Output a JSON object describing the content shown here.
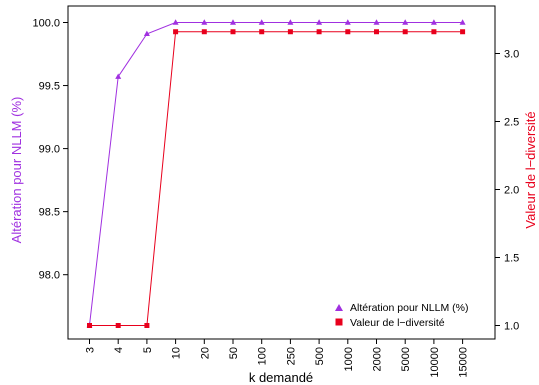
{
  "chart_data": {
    "type": "line",
    "xlabel": "k demandé",
    "categories": [
      "3",
      "4",
      "5",
      "10",
      "20",
      "50",
      "100",
      "250",
      "500",
      "1000",
      "2000",
      "5000",
      "10000",
      "15000"
    ],
    "y_left": {
      "label": "Altération pour NLLM (%)",
      "color": "#a030e0",
      "ticks": [
        "98.0",
        "98.5",
        "99.0",
        "99.5",
        "100.0"
      ],
      "ylim": [
        97.6,
        100.0
      ]
    },
    "y_right": {
      "label": "Valeur de l−diversité",
      "color": "#e8001c",
      "ticks": [
        "1.0",
        "1.5",
        "2.0",
        "2.5",
        "3.0"
      ],
      "ylim": [
        1.0,
        3.16
      ]
    },
    "series": [
      {
        "name": "Altération pour NLLM (%)",
        "axis": "left",
        "color": "#a030e0",
        "marker": "triangle",
        "values": [
          97.6,
          99.57,
          99.91,
          100.0,
          100.0,
          100.0,
          100.0,
          100.0,
          100.0,
          100.0,
          100.0,
          100.0,
          100.0,
          100.0
        ]
      },
      {
        "name": "Valeur de l−diversité",
        "axis": "right",
        "color": "#e8001c",
        "marker": "square",
        "values": [
          1.0,
          1.0,
          1.0,
          3.16,
          3.16,
          3.16,
          3.16,
          3.16,
          3.16,
          3.16,
          3.16,
          3.16,
          3.16,
          3.16
        ]
      }
    ],
    "legend": {
      "position": "bottom-right",
      "entries": [
        "Altération pour NLLM (%)",
        "Valeur de l−diversité"
      ]
    },
    "grid": false
  }
}
